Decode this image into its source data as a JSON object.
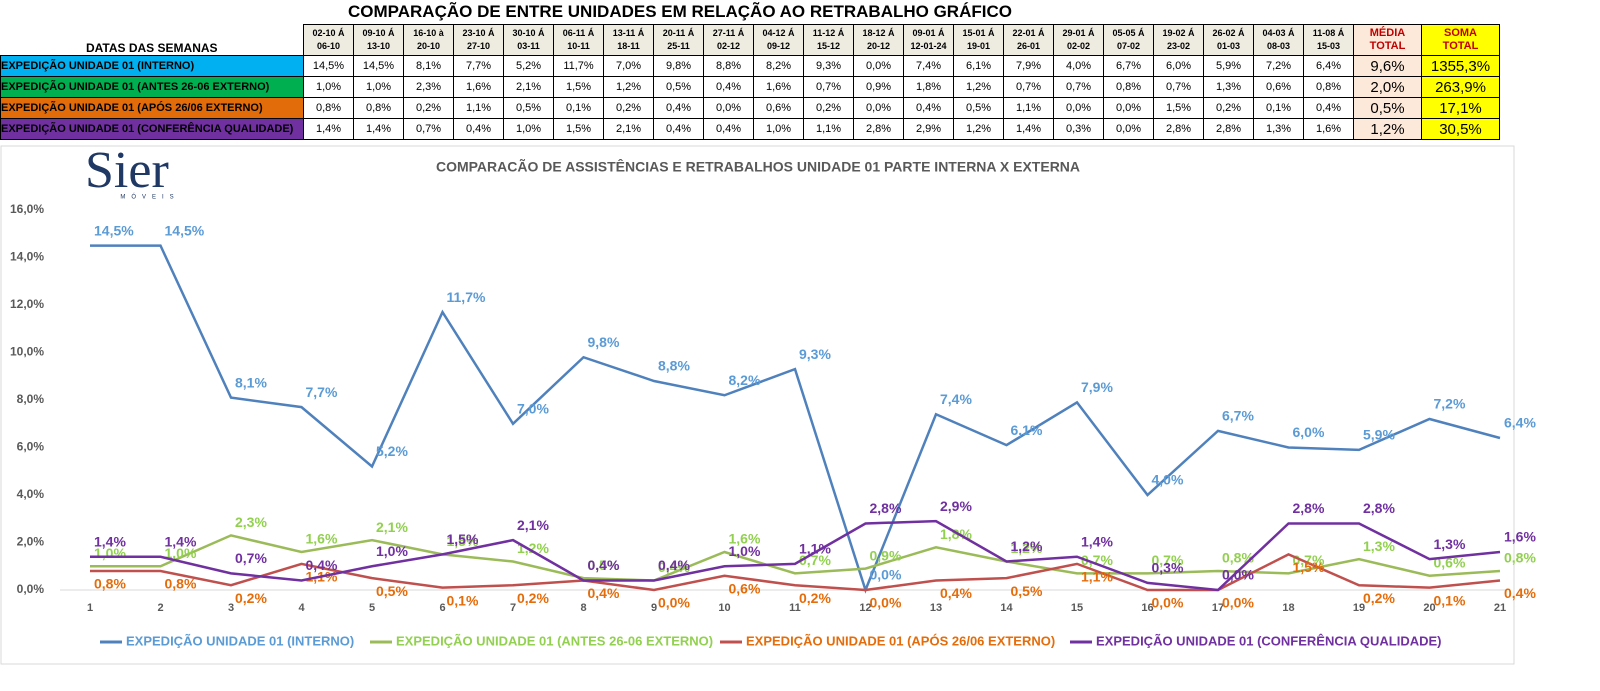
{
  "table": {
    "title": "COMPARAÇÃO DE ENTRE UNIDADES EM RELAÇÃO AO RETRABALHO GRÁFICO",
    "header_label": "DATAS DAS SEMANAS",
    "weeks": [
      [
        "02-10 Á",
        "06-10"
      ],
      [
        "09-10 Á",
        "13-10"
      ],
      [
        "16-10 à",
        "20-10"
      ],
      [
        "23-10 Á",
        "27-10"
      ],
      [
        "30-10 Á",
        "03-11"
      ],
      [
        "06-11 Á",
        "10-11"
      ],
      [
        "13-11 Á",
        "18-11"
      ],
      [
        "20-11 Á",
        "25-11"
      ],
      [
        "27-11 Á",
        "02-12"
      ],
      [
        "04-12 Á",
        "09-12"
      ],
      [
        "11-12 Á",
        "15-12"
      ],
      [
        "18-12 Á",
        "20-12"
      ],
      [
        "09-01 Á",
        "12-01-24"
      ],
      [
        "15-01 Á",
        "19-01"
      ],
      [
        "22-01 Á",
        "26-01"
      ],
      [
        "29-01 Á",
        "02-02"
      ],
      [
        "05-05 Á",
        "07-02"
      ],
      [
        "19-02 Á",
        "23-02"
      ],
      [
        "26-02 Á",
        "01-03"
      ],
      [
        "04-03 Á",
        "08-03"
      ],
      [
        "11-08 Á",
        "15-03"
      ]
    ],
    "media_header": [
      "MÉDIA",
      "TOTAL"
    ],
    "soma_header": [
      "SOMA",
      "TOTAL"
    ],
    "rows": [
      {
        "label": "EXPEDIÇÃO UNIDADE 01 (INTERNO)",
        "values": [
          "14,5%",
          "14,5%",
          "8,1%",
          "7,7%",
          "5,2%",
          "11,7%",
          "7,0%",
          "9,8%",
          "8,8%",
          "8,2%",
          "9,3%",
          "0,0%",
          "7,4%",
          "6,1%",
          "7,9%",
          "4,0%",
          "6,7%",
          "6,0%",
          "5,9%",
          "7,2%",
          "6,4%"
        ],
        "media": "9,6%",
        "soma": "1355,3%"
      },
      {
        "label": "EXPEDIÇÃO UNIDADE 01 (ANTES 26-06 EXTERNO)",
        "values": [
          "1,0%",
          "1,0%",
          "2,3%",
          "1,6%",
          "2,1%",
          "1,5%",
          "1,2%",
          "0,5%",
          "0,4%",
          "1,6%",
          "0,7%",
          "0,9%",
          "1,8%",
          "1,2%",
          "0,7%",
          "0,7%",
          "0,8%",
          "0,7%",
          "1,3%",
          "0,6%",
          "0,8%"
        ],
        "media": "2,0%",
        "soma": "263,9%"
      },
      {
        "label": "EXPEDIÇÃO UNIDADE 01 (APÓS 26/06 EXTERNO)",
        "values": [
          "0,8%",
          "0,8%",
          "0,2%",
          "1,1%",
          "0,5%",
          "0,1%",
          "0,2%",
          "0,4%",
          "0,0%",
          "0,6%",
          "0,2%",
          "0,0%",
          "0,4%",
          "0,5%",
          "1,1%",
          "0,0%",
          "0,0%",
          "1,5%",
          "0,2%",
          "0,1%",
          "0,4%"
        ],
        "media": "0,5%",
        "soma": "17,1%"
      },
      {
        "label": "EXPEDIÇÃO UNIDADE 01 (CONFERÊNCIA QUALIDADE)",
        "values": [
          "1,4%",
          "1,4%",
          "0,7%",
          "0,4%",
          "1,0%",
          "1,5%",
          "2,1%",
          "0,4%",
          "0,4%",
          "1,0%",
          "1,1%",
          "2,8%",
          "2,9%",
          "1,2%",
          "1,4%",
          "0,3%",
          "0,0%",
          "2,8%",
          "2,8%",
          "1,3%",
          "1,6%"
        ],
        "media": "1,2%",
        "soma": "30,5%"
      }
    ]
  },
  "logo": {
    "name": "Sier",
    "sub": "MÓVEIS"
  },
  "chart_data": {
    "type": "line",
    "title": "COMPARACÃO DE ASSISTÊNCIAS E RETRABALHOS UNIDADE 01 PARTE INTERNA X EXTERNA",
    "categories": [
      1,
      2,
      3,
      4,
      5,
      6,
      7,
      8,
      9,
      10,
      11,
      12,
      13,
      14,
      15,
      16,
      17,
      18,
      19,
      20,
      21
    ],
    "ylim": [
      0,
      16
    ],
    "yticks": [
      {
        "value": 0,
        "label": "0,0%"
      },
      {
        "value": 2,
        "label": "2,0%"
      },
      {
        "value": 4,
        "label": "4,0%"
      },
      {
        "value": 6,
        "label": "6,0%"
      },
      {
        "value": 8,
        "label": "8,0%"
      },
      {
        "value": 10,
        "label": "10,0%"
      },
      {
        "value": 12,
        "label": "12,0%"
      },
      {
        "value": 14,
        "label": "14,0%"
      },
      {
        "value": 16,
        "label": "16,0%"
      }
    ],
    "legend": "bottom",
    "series": [
      {
        "name": "EXPEDIÇÃO UNIDADE 01 (INTERNO)",
        "color": "#4f81bd",
        "label_color": "#5b9bd5",
        "values": [
          14.5,
          14.5,
          8.1,
          7.7,
          5.2,
          11.7,
          7.0,
          9.8,
          8.8,
          8.2,
          9.3,
          0.0,
          7.4,
          6.1,
          7.9,
          4.0,
          6.7,
          6.0,
          5.9,
          7.2,
          6.4
        ],
        "value_labels": [
          "14,5%",
          "14,5%",
          "8,1%",
          "7,7%",
          "5,2%",
          "11,7%",
          "7,0%",
          "9,8%",
          "8,8%",
          "8,2%",
          "9,3%",
          "0,0%",
          "7,4%",
          "6,1%",
          "7,9%",
          "4,0%",
          "6,7%",
          "6,0%",
          "5,9%",
          "7,2%",
          "6,4%"
        ]
      },
      {
        "name": "EXPEDIÇÃO UNIDADE 01 (ANTES 26-06 EXTERNO)",
        "color": "#9bbb59",
        "label_color": "#92d050",
        "values": [
          1.0,
          1.0,
          2.3,
          1.6,
          2.1,
          1.5,
          1.2,
          0.5,
          0.4,
          1.6,
          0.7,
          0.9,
          1.8,
          1.2,
          0.7,
          0.7,
          0.8,
          0.7,
          1.3,
          0.6,
          0.8
        ],
        "value_labels": [
          "1,0%",
          "1,0%",
          "2,3%",
          "1,6%",
          "2,1%",
          "1,5%",
          "1,2%",
          "0,5%",
          "0,4%",
          "1,6%",
          "0,7%",
          "0,9%",
          "1,8%",
          "1,2%",
          "0,7%",
          "0,7%",
          "0,8%",
          "0,7%",
          "1,3%",
          "0,6%",
          "0,8%"
        ]
      },
      {
        "name": "EXPEDIÇÃO UNIDADE 01 (APÓS 26/06 EXTERNO)",
        "color": "#c0504d",
        "label_color": "#e46c0a",
        "values": [
          0.8,
          0.8,
          0.2,
          1.1,
          0.5,
          0.1,
          0.2,
          0.4,
          0.0,
          0.6,
          0.2,
          0.0,
          0.4,
          0.5,
          1.1,
          0.0,
          0.0,
          1.5,
          0.2,
          0.1,
          0.4
        ],
        "value_labels": [
          "0,8%",
          "0,8%",
          "0,2%",
          "1,1%",
          "0,5%",
          "0,1%",
          "0,2%",
          "0,4%",
          "0,0%",
          "0,6%",
          "0,2%",
          "0,0%",
          "0,4%",
          "0,5%",
          "1,1%",
          "0,0%",
          "0,0%",
          "1,5%",
          "0,2%",
          "0,1%",
          "0,4%"
        ]
      },
      {
        "name": "EXPEDIÇÃO UNIDADE 01 (CONFERÊNCIA QUALIDADE)",
        "color": "#7030a0",
        "label_color": "#7030a0",
        "values": [
          1.4,
          1.4,
          0.7,
          0.4,
          1.0,
          1.5,
          2.1,
          0.4,
          0.4,
          1.0,
          1.1,
          2.8,
          2.9,
          1.2,
          1.4,
          0.3,
          0.0,
          2.8,
          2.8,
          1.3,
          1.6
        ],
        "value_labels": [
          "1,4%",
          "1,4%",
          "0,7%",
          "0,4%",
          "1,0%",
          "1,5%",
          "2,1%",
          "0,4%",
          "0,4%",
          "1,0%",
          "1,1%",
          "2,8%",
          "2,9%",
          "1,2%",
          "1,4%",
          "0,3%",
          "0,0%",
          "2,8%",
          "2,8%",
          "1,3%",
          "1,6%"
        ]
      }
    ]
  }
}
